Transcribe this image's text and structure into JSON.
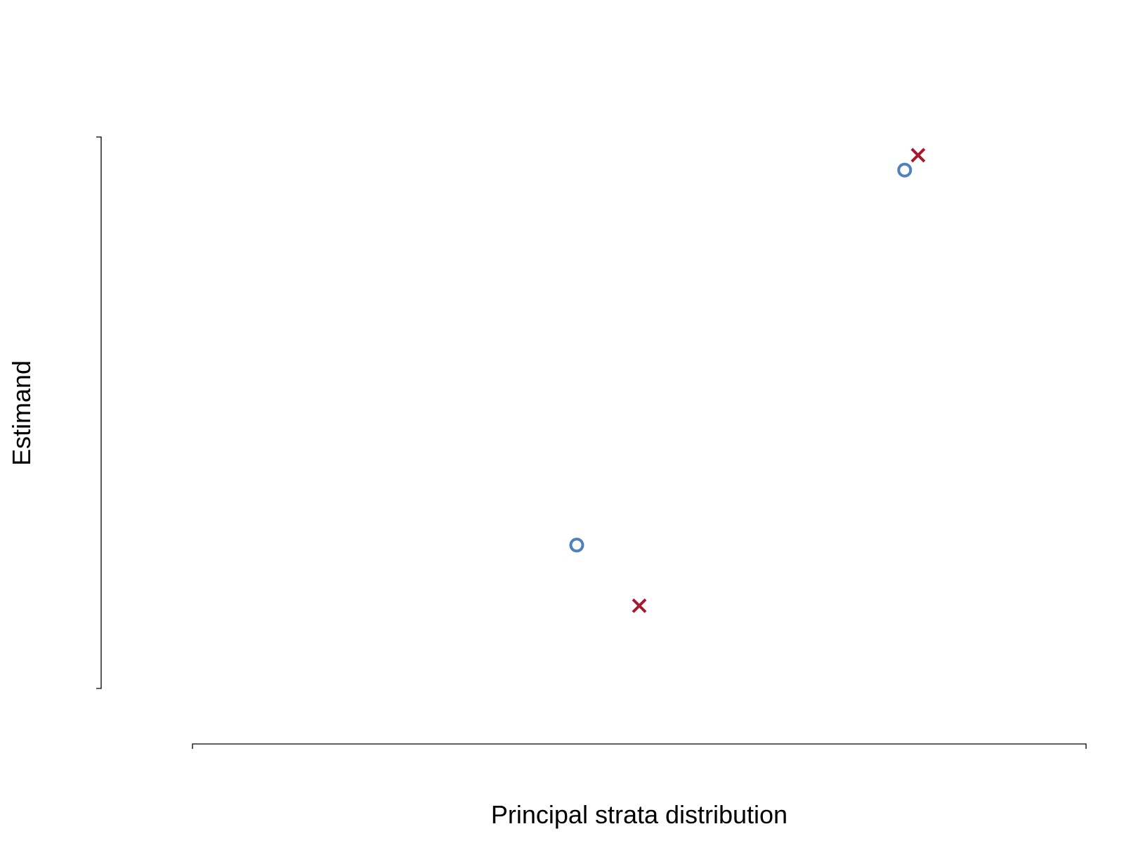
{
  "chart_data": {
    "type": "scatter",
    "title": "",
    "xlabel": "Principal strata distribution",
    "ylabel": "Estimand",
    "xlim": [
      0,
      1
    ],
    "ylim": [
      0,
      1
    ],
    "grid": false,
    "legend": "none",
    "series": [
      {
        "marker": "open-circle",
        "color": "#4f81bd",
        "points": [
          {
            "x": 0.43,
            "y": 0.26
          },
          {
            "x": 0.797,
            "y": 0.94
          }
        ]
      },
      {
        "marker": "cross",
        "color": "#a6192e",
        "points": [
          {
            "x": 0.5,
            "y": 0.15
          },
          {
            "x": 0.812,
            "y": 0.967
          }
        ]
      }
    ]
  }
}
